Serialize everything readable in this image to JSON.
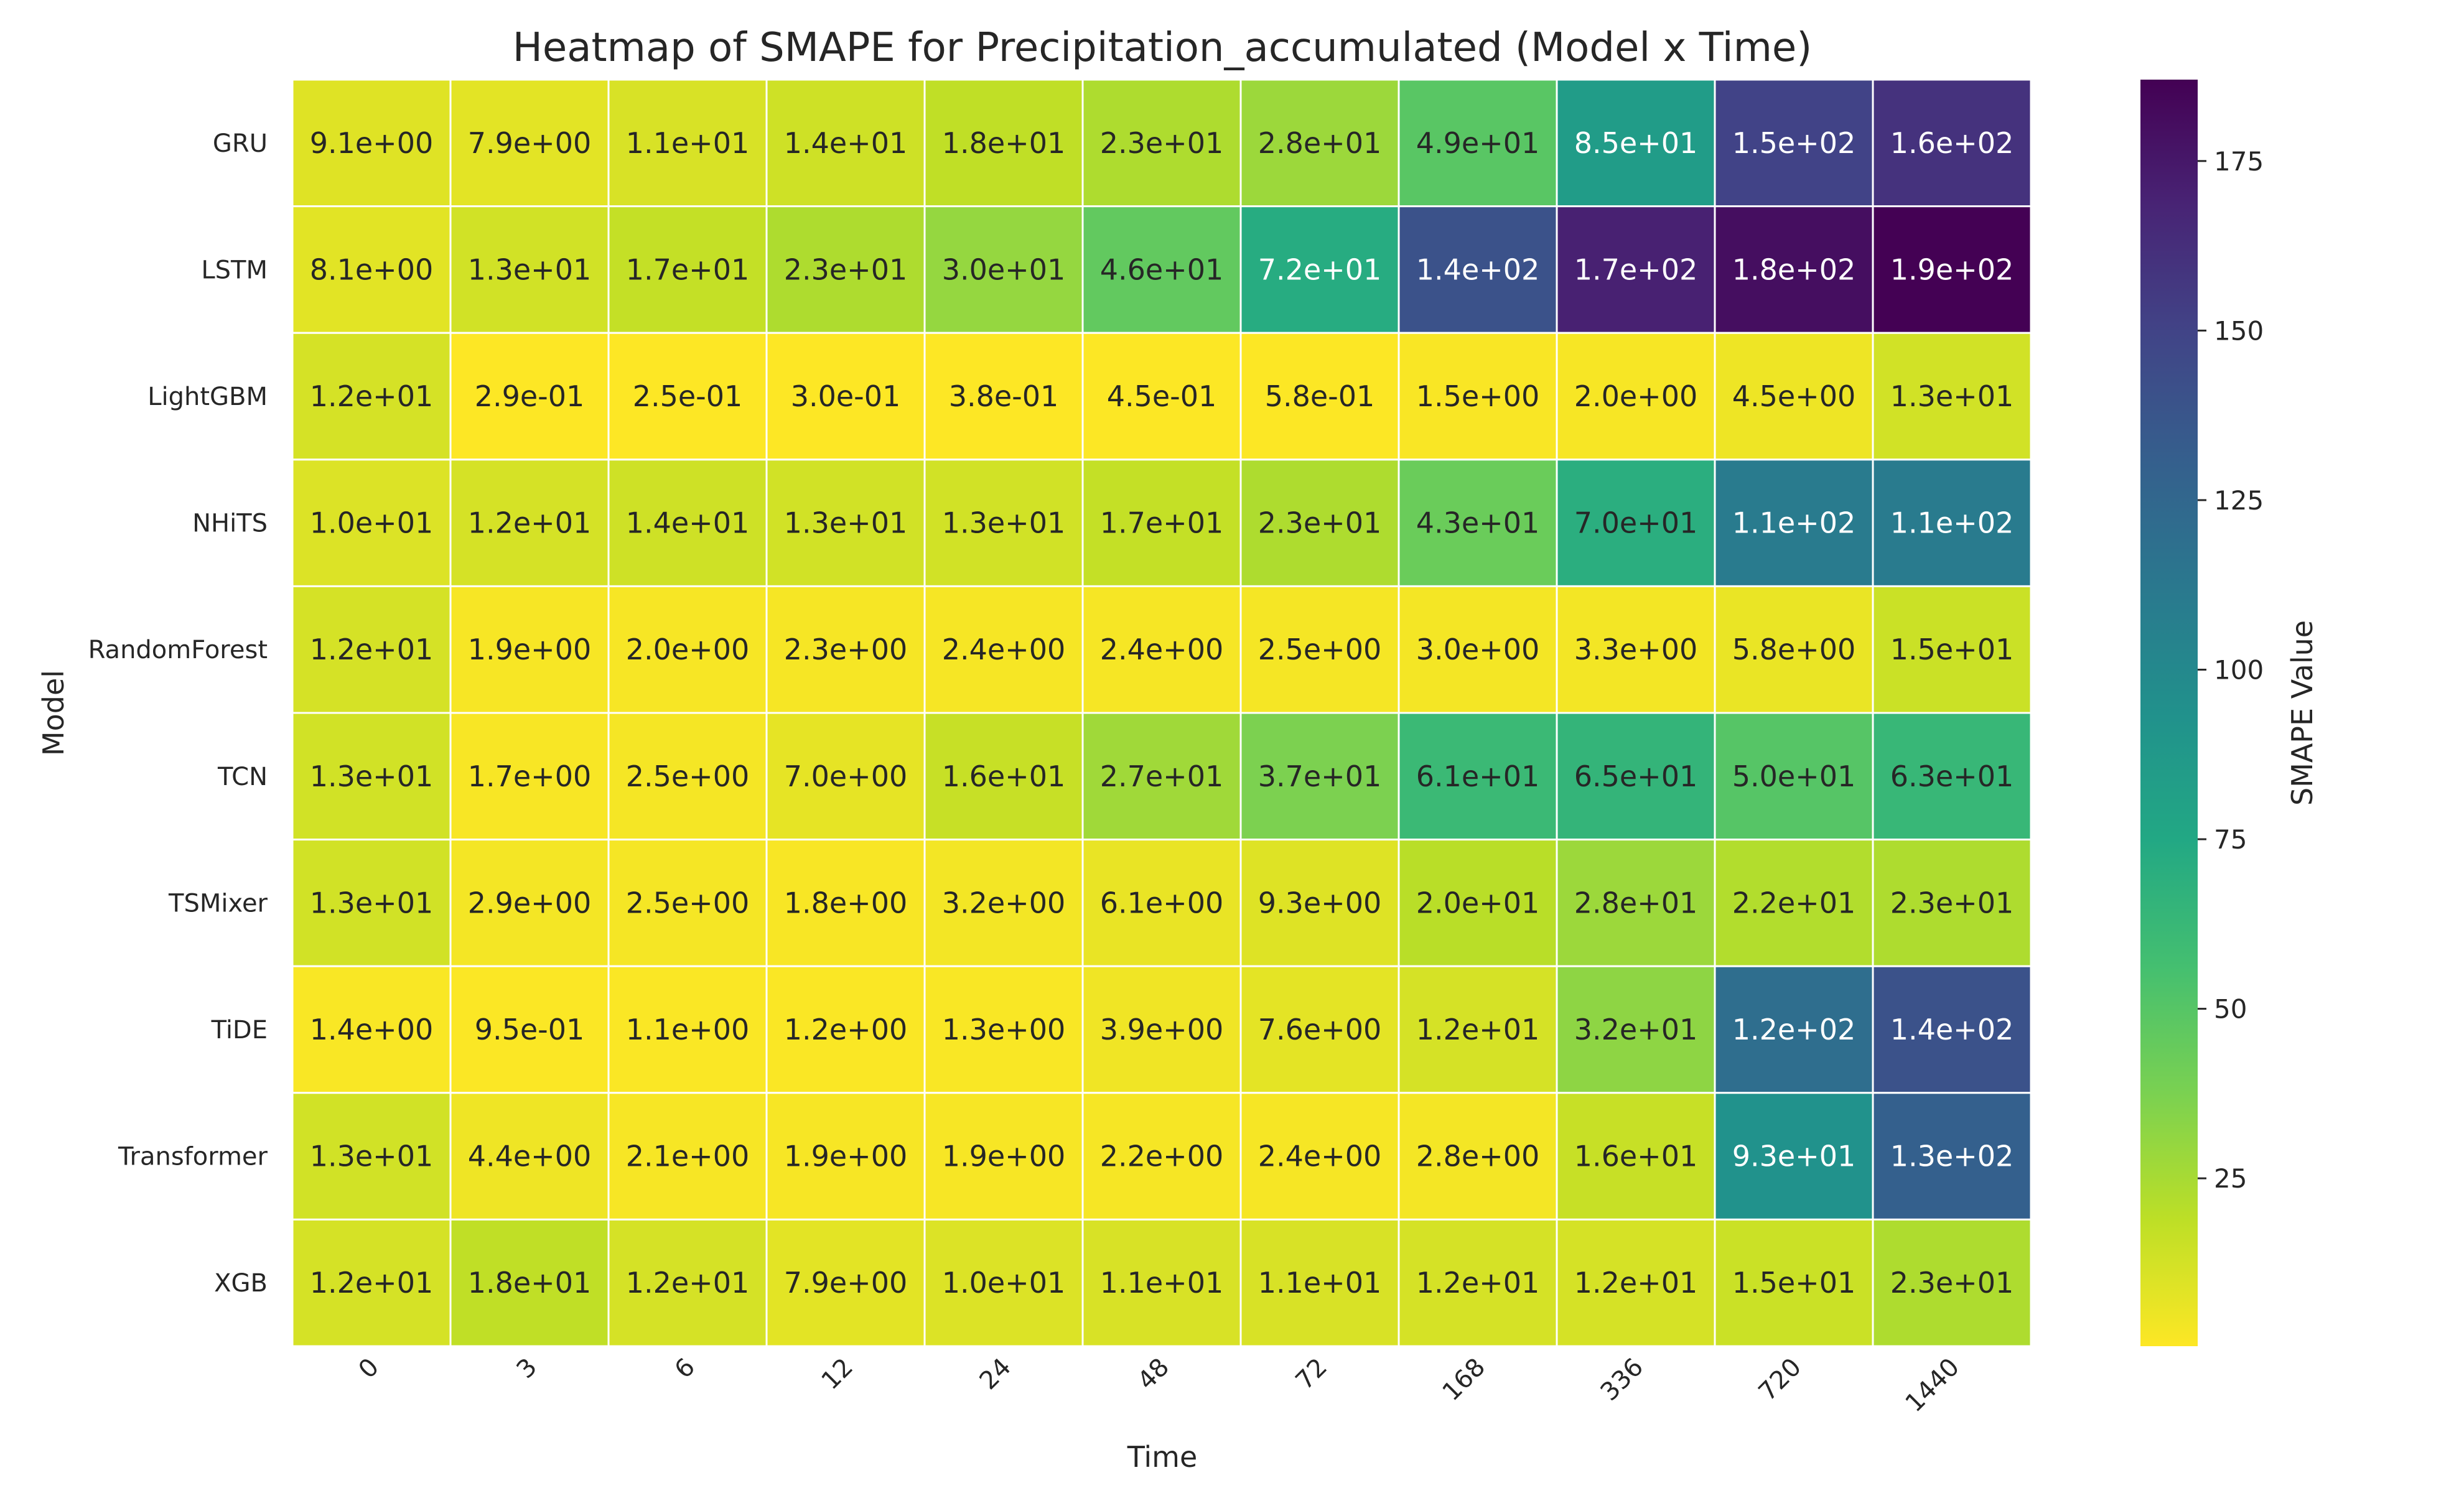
{
  "chart_data": {
    "type": "heatmap",
    "title": "Heatmap of SMAPE for Precipitation_accumulated (Model x Time)",
    "xlabel": "Time",
    "ylabel": "Model",
    "x_categories": [
      "0",
      "3",
      "6",
      "12",
      "24",
      "48",
      "72",
      "168",
      "336",
      "720",
      "1440"
    ],
    "y_categories": [
      "GRU",
      "LSTM",
      "LightGBM",
      "NHiTS",
      "RandomForest",
      "TCN",
      "TSMixer",
      "TiDE",
      "Transformer",
      "XGB"
    ],
    "values": [
      [
        9.1,
        7.9,
        11,
        14,
        18,
        23,
        28,
        49,
        85,
        150,
        160
      ],
      [
        8.1,
        13,
        17,
        23,
        30,
        46,
        72,
        140,
        170,
        180,
        190
      ],
      [
        12,
        0.29,
        0.25,
        0.3,
        0.38,
        0.45,
        0.58,
        1.5,
        2.0,
        4.5,
        13
      ],
      [
        10,
        12,
        14,
        13,
        13,
        17,
        23,
        43,
        70,
        110,
        110
      ],
      [
        12,
        1.9,
        2.0,
        2.3,
        2.4,
        2.4,
        2.5,
        3.0,
        3.3,
        5.8,
        15
      ],
      [
        13,
        1.7,
        2.5,
        7.0,
        16,
        27,
        37,
        61,
        65,
        50,
        63
      ],
      [
        13,
        2.9,
        2.5,
        1.8,
        3.2,
        6.1,
        9.3,
        20,
        28,
        22,
        23
      ],
      [
        1.4,
        0.95,
        1.1,
        1.2,
        1.3,
        3.9,
        7.6,
        12,
        32,
        120,
        140
      ],
      [
        13,
        4.4,
        2.1,
        1.9,
        1.9,
        2.2,
        2.4,
        2.8,
        16,
        93,
        130
      ],
      [
        12,
        18,
        12,
        7.9,
        10,
        11,
        11,
        12,
        12,
        15,
        23
      ]
    ],
    "labels": [
      [
        "9.1e+00",
        "7.9e+00",
        "1.1e+01",
        "1.4e+01",
        "1.8e+01",
        "2.3e+01",
        "2.8e+01",
        "4.9e+01",
        "8.5e+01",
        "1.5e+02",
        "1.6e+02"
      ],
      [
        "8.1e+00",
        "1.3e+01",
        "1.7e+01",
        "2.3e+01",
        "3.0e+01",
        "4.6e+01",
        "7.2e+01",
        "1.4e+02",
        "1.7e+02",
        "1.8e+02",
        "1.9e+02"
      ],
      [
        "1.2e+01",
        "2.9e-01",
        "2.5e-01",
        "3.0e-01",
        "3.8e-01",
        "4.5e-01",
        "5.8e-01",
        "1.5e+00",
        "2.0e+00",
        "4.5e+00",
        "1.3e+01"
      ],
      [
        "1.0e+01",
        "1.2e+01",
        "1.4e+01",
        "1.3e+01",
        "1.3e+01",
        "1.7e+01",
        "2.3e+01",
        "4.3e+01",
        "7.0e+01",
        "1.1e+02",
        "1.1e+02"
      ],
      [
        "1.2e+01",
        "1.9e+00",
        "2.0e+00",
        "2.3e+00",
        "2.4e+00",
        "2.4e+00",
        "2.5e+00",
        "3.0e+00",
        "3.3e+00",
        "5.8e+00",
        "1.5e+01"
      ],
      [
        "1.3e+01",
        "1.7e+00",
        "2.5e+00",
        "7.0e+00",
        "1.6e+01",
        "2.7e+01",
        "3.7e+01",
        "6.1e+01",
        "6.5e+01",
        "5.0e+01",
        "6.3e+01"
      ],
      [
        "1.3e+01",
        "2.9e+00",
        "2.5e+00",
        "1.8e+00",
        "3.2e+00",
        "6.1e+00",
        "9.3e+00",
        "2.0e+01",
        "2.8e+01",
        "2.2e+01",
        "2.3e+01"
      ],
      [
        "1.4e+00",
        "9.5e-01",
        "1.1e+00",
        "1.2e+00",
        "1.3e+00",
        "3.9e+00",
        "7.6e+00",
        "1.2e+01",
        "3.2e+01",
        "1.2e+02",
        "1.4e+02"
      ],
      [
        "1.3e+01",
        "4.4e+00",
        "2.1e+00",
        "1.9e+00",
        "1.9e+00",
        "2.2e+00",
        "2.4e+00",
        "2.8e+00",
        "1.6e+01",
        "9.3e+01",
        "1.3e+02"
      ],
      [
        "1.2e+01",
        "1.8e+01",
        "1.2e+01",
        "7.9e+00",
        "1.0e+01",
        "1.1e+01",
        "1.1e+01",
        "1.2e+01",
        "1.2e+01",
        "1.5e+01",
        "2.3e+01"
      ]
    ],
    "colorbar": {
      "label": "SMAPE Value",
      "colormap": "viridis_r",
      "range": [
        0.25,
        187
      ],
      "ticks": [
        25,
        50,
        75,
        100,
        125,
        150,
        175
      ]
    },
    "grid": false
  }
}
